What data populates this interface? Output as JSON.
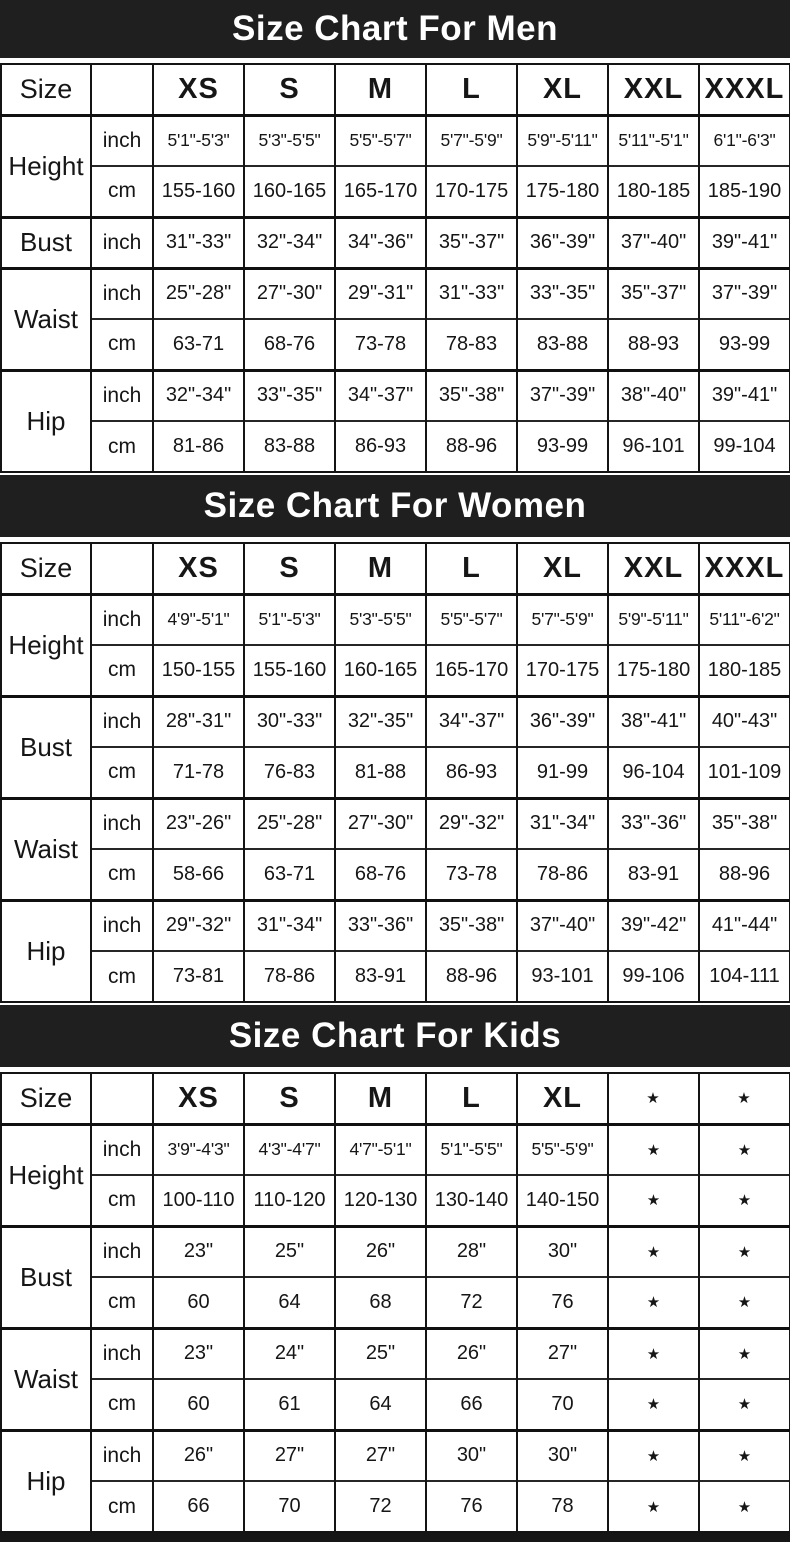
{
  "colors": {
    "banner_bg": "#1f1f1f",
    "banner_text": "#ffffff",
    "table_border": "#141414",
    "cell_text": "#161616",
    "table_bg": "#ffffff"
  },
  "na_marker": "★",
  "chart_data": [
    {
      "type": "table",
      "id": "men",
      "title": "Size Chart For Men",
      "corner_label": "Size",
      "columns": [
        "XS",
        "S",
        "M",
        "L",
        "XL",
        "XXL",
        "XXXL"
      ],
      "row_groups": [
        {
          "label": "Height",
          "rows": [
            {
              "unit": "inch",
              "values": [
                "5'1\"-5'3\"",
                "5'3\"-5'5\"",
                "5'5\"-5'7\"",
                "5'7\"-5'9\"",
                "5'9\"-5'11\"",
                "5'11\"-5'1\"",
                "6'1\"-6'3\""
              ]
            },
            {
              "unit": "cm",
              "values": [
                "155-160",
                "160-165",
                "165-170",
                "170-175",
                "175-180",
                "180-185",
                "185-190"
              ]
            }
          ]
        },
        {
          "label": "Bust",
          "rows": [
            {
              "unit": "inch",
              "values": [
                "31\"-33\"",
                "32\"-34\"",
                "34\"-36\"",
                "35\"-37\"",
                "36\"-39\"",
                "37\"-40\"",
                "39\"-41\""
              ]
            }
          ]
        },
        {
          "label": "Waist",
          "rows": [
            {
              "unit": "inch",
              "values": [
                "25\"-28\"",
                "27\"-30\"",
                "29\"-31\"",
                "31\"-33\"",
                "33\"-35\"",
                "35\"-37\"",
                "37\"-39\""
              ]
            },
            {
              "unit": "cm",
              "values": [
                "63-71",
                "68-76",
                "73-78",
                "78-83",
                "83-88",
                "88-93",
                "93-99"
              ]
            }
          ]
        },
        {
          "label": "Hip",
          "rows": [
            {
              "unit": "inch",
              "values": [
                "32\"-34\"",
                "33\"-35\"",
                "34\"-37\"",
                "35\"-38\"",
                "37\"-39\"",
                "38\"-40\"",
                "39\"-41\""
              ]
            },
            {
              "unit": "cm",
              "values": [
                "81-86",
                "83-88",
                "86-93",
                "88-96",
                "93-99",
                "96-101",
                "99-104"
              ]
            }
          ]
        }
      ]
    },
    {
      "type": "table",
      "id": "women",
      "title": "Size Chart For Women",
      "corner_label": "Size",
      "columns": [
        "XS",
        "S",
        "M",
        "L",
        "XL",
        "XXL",
        "XXXL"
      ],
      "row_groups": [
        {
          "label": "Height",
          "rows": [
            {
              "unit": "inch",
              "values": [
                "4'9\"-5'1\"",
                "5'1\"-5'3\"",
                "5'3\"-5'5\"",
                "5'5\"-5'7\"",
                "5'7\"-5'9\"",
                "5'9\"-5'11\"",
                "5'11\"-6'2\""
              ]
            },
            {
              "unit": "cm",
              "values": [
                "150-155",
                "155-160",
                "160-165",
                "165-170",
                "170-175",
                "175-180",
                "180-185"
              ]
            }
          ]
        },
        {
          "label": "Bust",
          "rows": [
            {
              "unit": "inch",
              "values": [
                "28\"-31\"",
                "30\"-33\"",
                "32\"-35\"",
                "34\"-37\"",
                "36\"-39\"",
                "38\"-41\"",
                "40\"-43\""
              ]
            },
            {
              "unit": "cm",
              "values": [
                "71-78",
                "76-83",
                "81-88",
                "86-93",
                "91-99",
                "96-104",
                "101-109"
              ]
            }
          ]
        },
        {
          "label": "Waist",
          "rows": [
            {
              "unit": "inch",
              "values": [
                "23\"-26\"",
                "25\"-28\"",
                "27\"-30\"",
                "29\"-32\"",
                "31\"-34\"",
                "33\"-36\"",
                "35\"-38\""
              ]
            },
            {
              "unit": "cm",
              "values": [
                "58-66",
                "63-71",
                "68-76",
                "73-78",
                "78-86",
                "83-91",
                "88-96"
              ]
            }
          ]
        },
        {
          "label": "Hip",
          "rows": [
            {
              "unit": "inch",
              "values": [
                "29\"-32\"",
                "31\"-34\"",
                "33\"-36\"",
                "35\"-38\"",
                "37\"-40\"",
                "39\"-42\"",
                "41\"-44\""
              ]
            },
            {
              "unit": "cm",
              "values": [
                "73-81",
                "78-86",
                "83-91",
                "88-96",
                "93-101",
                "99-106",
                "104-111"
              ]
            }
          ]
        }
      ]
    },
    {
      "type": "table",
      "id": "kids",
      "title": "Size Chart For Kids",
      "corner_label": "Size",
      "columns": [
        "XS",
        "S",
        "M",
        "L",
        "XL",
        "★",
        "★"
      ],
      "row_groups": [
        {
          "label": "Height",
          "rows": [
            {
              "unit": "inch",
              "values": [
                "3'9\"-4'3\"",
                "4'3\"-4'7\"",
                "4'7\"-5'1\"",
                "5'1\"-5'5\"",
                "5'5\"-5'9\"",
                "★",
                "★"
              ]
            },
            {
              "unit": "cm",
              "values": [
                "100-110",
                "110-120",
                "120-130",
                "130-140",
                "140-150",
                "★",
                "★"
              ]
            }
          ]
        },
        {
          "label": "Bust",
          "rows": [
            {
              "unit": "inch",
              "values": [
                "23\"",
                "25\"",
                "26\"",
                "28\"",
                "30\"",
                "★",
                "★"
              ]
            },
            {
              "unit": "cm",
              "values": [
                "60",
                "64",
                "68",
                "72",
                "76",
                "★",
                "★"
              ]
            }
          ]
        },
        {
          "label": "Waist",
          "rows": [
            {
              "unit": "inch",
              "values": [
                "23\"",
                "24\"",
                "25\"",
                "26\"",
                "27\"",
                "★",
                "★"
              ]
            },
            {
              "unit": "cm",
              "values": [
                "60",
                "61",
                "64",
                "66",
                "70",
                "★",
                "★"
              ]
            }
          ]
        },
        {
          "label": "Hip",
          "rows": [
            {
              "unit": "inch",
              "values": [
                "26\"",
                "27\"",
                "27\"",
                "30\"",
                "30\"",
                "★",
                "★"
              ]
            },
            {
              "unit": "cm",
              "values": [
                "66",
                "70",
                "72",
                "76",
                "78",
                "★",
                "★"
              ]
            }
          ]
        }
      ]
    }
  ]
}
